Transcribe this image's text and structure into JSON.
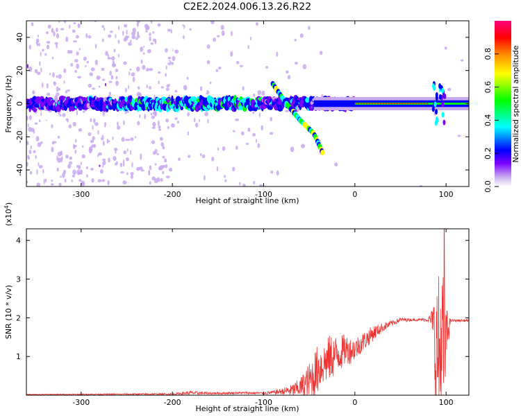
{
  "title": "C2E2.2024.006.13.26.R22",
  "chart_data": [
    {
      "type": "heatmap",
      "title": "C2E2.2024.006.13.26.R22",
      "xlabel": "Height of straight line (km)",
      "ylabel": "Frequency (Hz)",
      "xlim": [
        -360,
        125
      ],
      "ylim": [
        -50,
        50
      ],
      "x_ticks": [
        -300,
        -200,
        -100,
        0,
        100
      ],
      "y_ticks": [
        -40,
        -20,
        0,
        20,
        40
      ],
      "colorbar": {
        "label": "Normalized spectral amplitude",
        "range": [
          0,
          1
        ],
        "ticks": [
          0.0,
          0.2,
          0.4,
          0.6,
          0.8
        ],
        "colors": [
          "#ffffff",
          "#c8a8f0",
          "#7a00ff",
          "#0000ff",
          "#00ffff",
          "#00ff00",
          "#ffff00",
          "#ff8800",
          "#ff0000",
          "#ff0080"
        ]
      },
      "main_band": {
        "center_hz": 0,
        "width_hz": 6,
        "noisy_until_km": -200,
        "drift_segment": [
          [
            -90,
            12
          ],
          [
            -75,
            0
          ],
          [
            -60,
            -10
          ],
          [
            -45,
            -18
          ],
          [
            -35,
            -30
          ]
        ],
        "strong_line_from_km": 0,
        "bursts_km": [
          88,
          96
        ]
      }
    },
    {
      "type": "line",
      "xlabel": "Height of straight line (km)",
      "ylabel": "SNR (10 * v/v)",
      "yscale_label": "(x10",
      "yscale_exp": "4",
      "xlim": [
        -360,
        125
      ],
      "ylim": [
        0,
        4.3
      ],
      "x_ticks": [
        -300,
        -200,
        -100,
        0,
        100
      ],
      "y_ticks": [
        1,
        2,
        3,
        4
      ],
      "color": "#ee3333",
      "envelope": {
        "x": [
          -360,
          -200,
          -180,
          -160,
          -120,
          -100,
          -90,
          -80,
          -70,
          -60,
          -50,
          -45,
          -40,
          -35,
          -30,
          -25,
          -20,
          -15,
          -10,
          -5,
          0,
          10,
          20,
          30,
          40,
          50,
          60,
          70,
          80,
          85,
          88,
          92,
          95,
          98,
          100,
          105,
          110,
          125
        ],
        "base": [
          0.02,
          0.03,
          0.06,
          0.05,
          0.06,
          0.05,
          0.07,
          0.1,
          0.12,
          0.2,
          0.35,
          0.5,
          0.7,
          0.8,
          0.9,
          1.0,
          1.05,
          1.1,
          1.2,
          1.15,
          1.2,
          1.4,
          1.6,
          1.75,
          1.85,
          1.95,
          1.95,
          1.95,
          1.95,
          1.95,
          1.2,
          1.0,
          1.2,
          0.9,
          1.5,
          1.93,
          1.93,
          1.93
        ],
        "amp": [
          0.01,
          0.02,
          0.05,
          0.03,
          0.03,
          0.03,
          0.05,
          0.08,
          0.15,
          0.25,
          0.5,
          0.6,
          0.65,
          0.55,
          0.6,
          0.6,
          0.5,
          0.45,
          0.4,
          0.35,
          0.3,
          0.25,
          0.2,
          0.12,
          0.08,
          0.06,
          0.04,
          0.03,
          0.05,
          0.3,
          1.8,
          2.2,
          2.4,
          2.2,
          0.8,
          0.03,
          0.03,
          0.03
        ]
      },
      "peak": [
        98,
        4.3
      ]
    }
  ]
}
